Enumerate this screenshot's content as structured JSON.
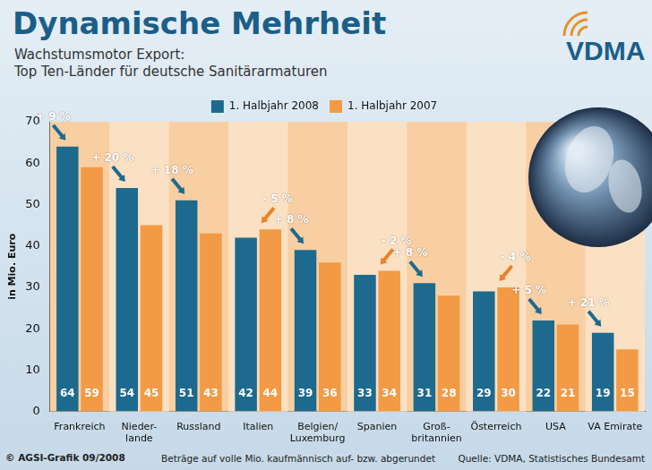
{
  "chart_data": {
    "type": "bar",
    "title": "Dynamische Mehrheit",
    "subtitle": [
      "Wachstumsmotor Export:",
      "Top Ten-Länder für deutsche Sanitärarmaturen"
    ],
    "logo": "VDMA",
    "y_label": "in Mio. Euro",
    "categories": [
      "Frankreich",
      [
        "Nieder-",
        "lande"
      ],
      "Russland",
      "Italien",
      [
        "Belgien/",
        "Luxemburg"
      ],
      "Spanien",
      [
        "Groß-",
        "britannien"
      ],
      "Österreich",
      "USA",
      "VA Emirate"
    ],
    "series": [
      {
        "name": "1. Halbjahr 2008",
        "color": "#1d6a8e",
        "values": [
          64,
          54,
          51,
          42,
          39,
          33,
          31,
          29,
          22,
          19
        ]
      },
      {
        "name": "1. Halbjahr 2007",
        "color": "#f29a45",
        "values": [
          59,
          45,
          43,
          44,
          36,
          34,
          28,
          30,
          21,
          15
        ]
      }
    ],
    "annotations": [
      "+ 9 %",
      "+ 20 %",
      "+ 18 %",
      "- 5 %",
      "+ 8 %",
      "- 2 %",
      "+ 8 %",
      "- 4 %",
      "+ 5 %",
      "+ 21 %"
    ],
    "ylim": [
      0,
      70
    ],
    "yticks": [
      0,
      10,
      20,
      30,
      40,
      50,
      60,
      70
    ],
    "grid": false,
    "legend": "top",
    "data_labels": true,
    "footer": {
      "credit": "© AGSI-Grafik 09/2008",
      "note": "Beträge auf volle Mio. kaufmännisch auf- bzw. abgerundet",
      "source": "Quelle: VDMA, Statistisches Bundesamt"
    }
  }
}
